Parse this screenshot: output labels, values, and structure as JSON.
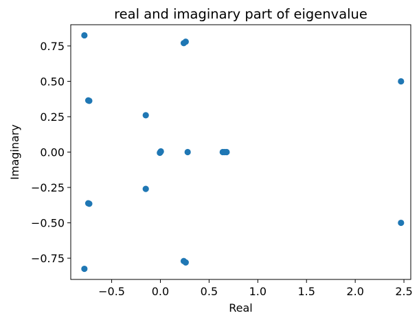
{
  "chart_data": {
    "type": "scatter",
    "title": "real and imaginary part of eigenvalue",
    "xlabel": "Real",
    "ylabel": "Imaginary",
    "xlim": [
      -0.92,
      2.57
    ],
    "ylim": [
      -0.9,
      0.9
    ],
    "xticks": [
      -0.5,
      0.0,
      0.5,
      1.0,
      1.5,
      2.0,
      2.5
    ],
    "xtick_labels": [
      "−0.5",
      "0.0",
      "0.5",
      "1.0",
      "1.5",
      "2.0",
      "2.5"
    ],
    "yticks": [
      -0.75,
      -0.5,
      -0.25,
      0.0,
      0.25,
      0.5,
      0.75
    ],
    "ytick_labels": [
      "−0.75",
      "−0.50",
      "−0.25",
      "0.00",
      "0.25",
      "0.50",
      "0.75"
    ],
    "grid": false,
    "marker_color": "#1f77b4",
    "points": [
      {
        "x": -0.78,
        "y": 0.825
      },
      {
        "x": -0.78,
        "y": -0.825
      },
      {
        "x": -0.74,
        "y": 0.365
      },
      {
        "x": -0.73,
        "y": 0.362
      },
      {
        "x": -0.74,
        "y": -0.362
      },
      {
        "x": -0.73,
        "y": -0.365
      },
      {
        "x": -0.15,
        "y": 0.26
      },
      {
        "x": -0.15,
        "y": -0.26
      },
      {
        "x": 0.0,
        "y": 0.0
      },
      {
        "x": 0.005,
        "y": 0.005
      },
      {
        "x": -0.005,
        "y": -0.005
      },
      {
        "x": 0.24,
        "y": 0.77
      },
      {
        "x": 0.26,
        "y": 0.78
      },
      {
        "x": 0.24,
        "y": -0.77
      },
      {
        "x": 0.26,
        "y": -0.78
      },
      {
        "x": 0.28,
        "y": 0.0
      },
      {
        "x": 0.64,
        "y": 0.0
      },
      {
        "x": 0.66,
        "y": 0.0
      },
      {
        "x": 0.68,
        "y": 0.0
      },
      {
        "x": 2.47,
        "y": 0.5
      },
      {
        "x": 2.47,
        "y": -0.5
      }
    ]
  }
}
